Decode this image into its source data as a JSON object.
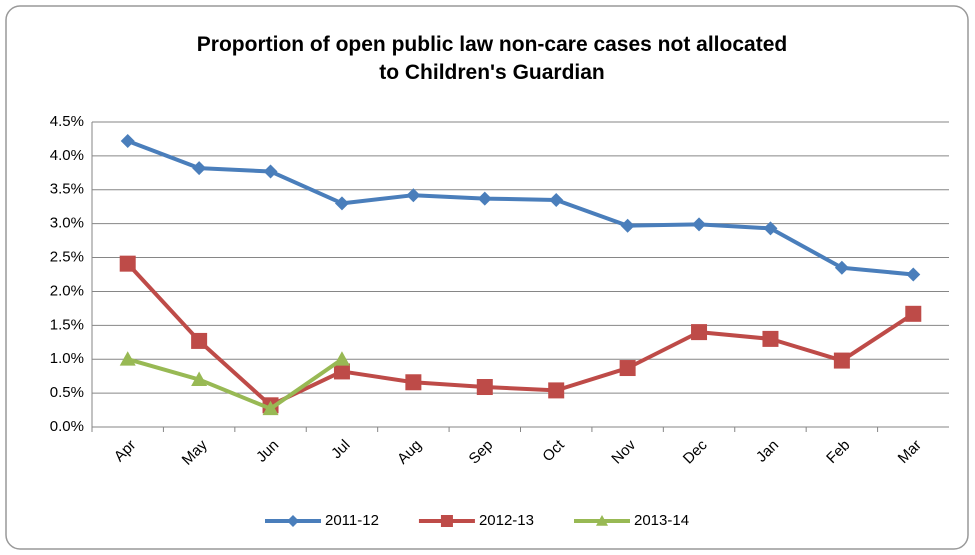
{
  "chart_data": {
    "type": "line",
    "title": "Proportion of open public law non-care cases not allocated to Children's Guardian",
    "categories": [
      "Apr",
      "May",
      "Jun",
      "Jul",
      "Aug",
      "Sep",
      "Oct",
      "Nov",
      "Dec",
      "Jan",
      "Feb",
      "Mar"
    ],
    "series": [
      {
        "name": "2011-12",
        "color": "#4a7ebb",
        "marker": "diamond",
        "values": [
          4.22,
          3.82,
          3.77,
          3.3,
          3.42,
          3.37,
          3.35,
          2.97,
          2.99,
          2.93,
          2.35,
          2.25
        ]
      },
      {
        "name": "2012-13",
        "color": "#be4b48",
        "marker": "square",
        "values": [
          2.41,
          1.27,
          0.32,
          0.82,
          0.66,
          0.59,
          0.54,
          0.87,
          1.4,
          1.3,
          0.98,
          1.67
        ]
      },
      {
        "name": "2013-14",
        "color": "#98b954",
        "marker": "triangle",
        "values": [
          1.0,
          0.7,
          0.27,
          1.0,
          null,
          null,
          null,
          null,
          null,
          null,
          null,
          null
        ]
      }
    ],
    "ylim": [
      0,
      4.5
    ],
    "yticks": [
      {
        "value": 0,
        "label": "0.0%"
      },
      {
        "value": 0.5,
        "label": "0.5%"
      },
      {
        "value": 1,
        "label": "1.0%"
      },
      {
        "value": 1.5,
        "label": "1.5%"
      },
      {
        "value": 2,
        "label": "2.0%"
      },
      {
        "value": 2.5,
        "label": "2.5%"
      },
      {
        "value": 3,
        "label": "3.0%"
      },
      {
        "value": 3.5,
        "label": "3.5%"
      },
      {
        "value": 4,
        "label": "4.0%"
      },
      {
        "value": 4.5,
        "label": "4.5%"
      }
    ],
    "grid": true,
    "legend": "bottom"
  }
}
